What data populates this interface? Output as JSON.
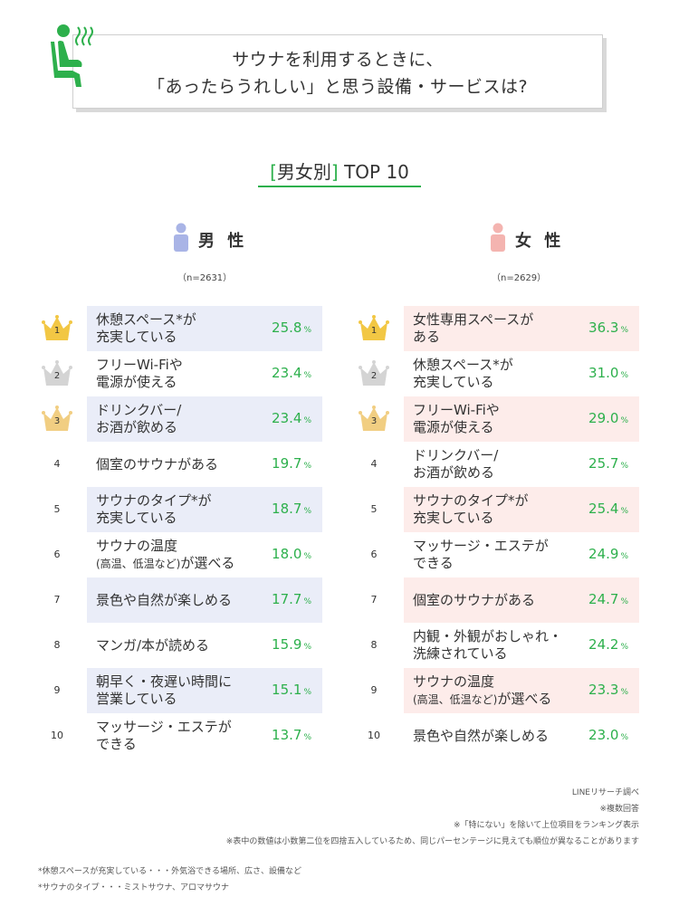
{
  "header": {
    "title_line1": "サウナを利用するときに、",
    "title_line2": "「あったらうれしい」と思う設備・サービスは?"
  },
  "subtitle": {
    "open": "[",
    "gender": "男女別",
    "close": "]",
    "rest": " TOP 10"
  },
  "colors": {
    "accent": "#2db04c",
    "male_bg": "#eaedf8",
    "female_bg": "#fdecea",
    "gold": "#f2c744",
    "silver": "#d4d4d4",
    "bronze": "#f1ce82"
  },
  "male": {
    "label": "男 性",
    "sample": "（n=2631）",
    "unit": "%",
    "items": [
      {
        "rank": "1",
        "label": "休憩スペース*が\n充実している",
        "value": "25.8"
      },
      {
        "rank": "2",
        "label": "フリーWi-Fiや\n電源が使える",
        "value": "23.4"
      },
      {
        "rank": "3",
        "label": "ドリンクバー/\nお酒が飲める",
        "value": "23.4"
      },
      {
        "rank": "4",
        "label": "個室のサウナがある",
        "value": "19.7"
      },
      {
        "rank": "5",
        "label": "サウナのタイプ*が\n充実している",
        "value": "18.7"
      },
      {
        "rank": "6",
        "label": "サウナの温度\n(高温、低温など)が選べる",
        "value": "18.0"
      },
      {
        "rank": "7",
        "label": "景色や自然が楽しめる",
        "value": "17.7"
      },
      {
        "rank": "8",
        "label": "マンガ/本が読める",
        "value": "15.9"
      },
      {
        "rank": "9",
        "label": "朝早く・夜遅い時間に\n営業している",
        "value": "15.1"
      },
      {
        "rank": "10",
        "label": "マッサージ・エステが\nできる",
        "value": "13.7"
      }
    ]
  },
  "female": {
    "label": "女 性",
    "sample": "（n=2629）",
    "unit": "%",
    "items": [
      {
        "rank": "1",
        "label": "女性専用スペースが\nある",
        "value": "36.3"
      },
      {
        "rank": "2",
        "label": "休憩スペース*が\n充実している",
        "value": "31.0"
      },
      {
        "rank": "3",
        "label": "フリーWi-Fiや\n電源が使える",
        "value": "29.0"
      },
      {
        "rank": "4",
        "label": "ドリンクバー/\nお酒が飲める",
        "value": "25.7"
      },
      {
        "rank": "5",
        "label": "サウナのタイプ*が\n充実している",
        "value": "25.4"
      },
      {
        "rank": "6",
        "label": "マッサージ・エステが\nできる",
        "value": "24.9"
      },
      {
        "rank": "7",
        "label": "個室のサウナがある",
        "value": "24.7"
      },
      {
        "rank": "8",
        "label": "内観・外観がおしゃれ・\n洗練されている",
        "value": "24.2"
      },
      {
        "rank": "9",
        "label": "サウナの温度\n(高温、低温など)が選べる",
        "value": "23.3"
      },
      {
        "rank": "10",
        "label": "景色や自然が楽しめる",
        "value": "23.0"
      }
    ]
  },
  "chart_data": [
    {
      "type": "table",
      "title": "男性",
      "categories": [
        "休憩スペース*が充実している",
        "フリーWi-Fiや電源が使える",
        "ドリンクバー/お酒が飲める",
        "個室のサウナがある",
        "サウナのタイプ*が充実している",
        "サウナの温度(高温、低温など)が選べる",
        "景色や自然が楽しめる",
        "マンガ/本が読める",
        "朝早く・夜遅い時間に営業している",
        "マッサージ・エステができる"
      ],
      "values": [
        25.8,
        23.4,
        23.4,
        19.7,
        18.7,
        18.0,
        17.7,
        15.9,
        15.1,
        13.7
      ]
    },
    {
      "type": "table",
      "title": "女性",
      "categories": [
        "女性専用スペースがある",
        "休憩スペース*が充実している",
        "フリーWi-Fiや電源が使える",
        "ドリンクバー/お酒が飲める",
        "サウナのタイプ*が充実している",
        "マッサージ・エステができる",
        "個室のサウナがある",
        "内観・外観がおしゃれ・洗練されている",
        "サウナの温度(高温、低温など)が選べる",
        "景色や自然が楽しめる"
      ],
      "values": [
        36.3,
        31.0,
        29.0,
        25.7,
        25.4,
        24.9,
        24.7,
        24.2,
        23.3,
        23.0
      ]
    }
  ],
  "notes": {
    "source": "LINEリサーチ調べ",
    "multi": "※複数回答",
    "exclude": "※「特にない」を除いて上位項目をランキング表示",
    "rounding": "※表中の数値は小数第二位を四捨五入しているため、同じパーセンテージに見えても順位が異なることがあります",
    "def1": "*休憩スペースが充実している・・・外気浴できる場所、広さ、設備など",
    "def2": "*サウナのタイプ・・・ミストサウナ、アロマサウナ"
  }
}
